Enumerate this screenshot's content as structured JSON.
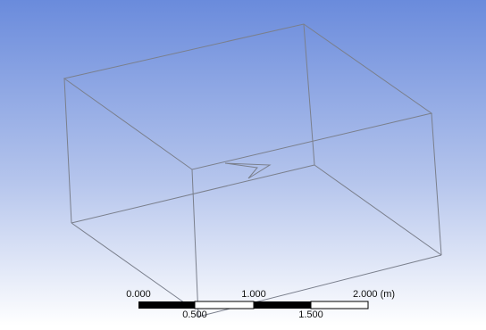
{
  "scale_bar": {
    "top_labels": [
      "0.000",
      "1.000",
      "2.000 (m)"
    ],
    "bottom_labels": [
      "0.500",
      "1.500"
    ]
  }
}
